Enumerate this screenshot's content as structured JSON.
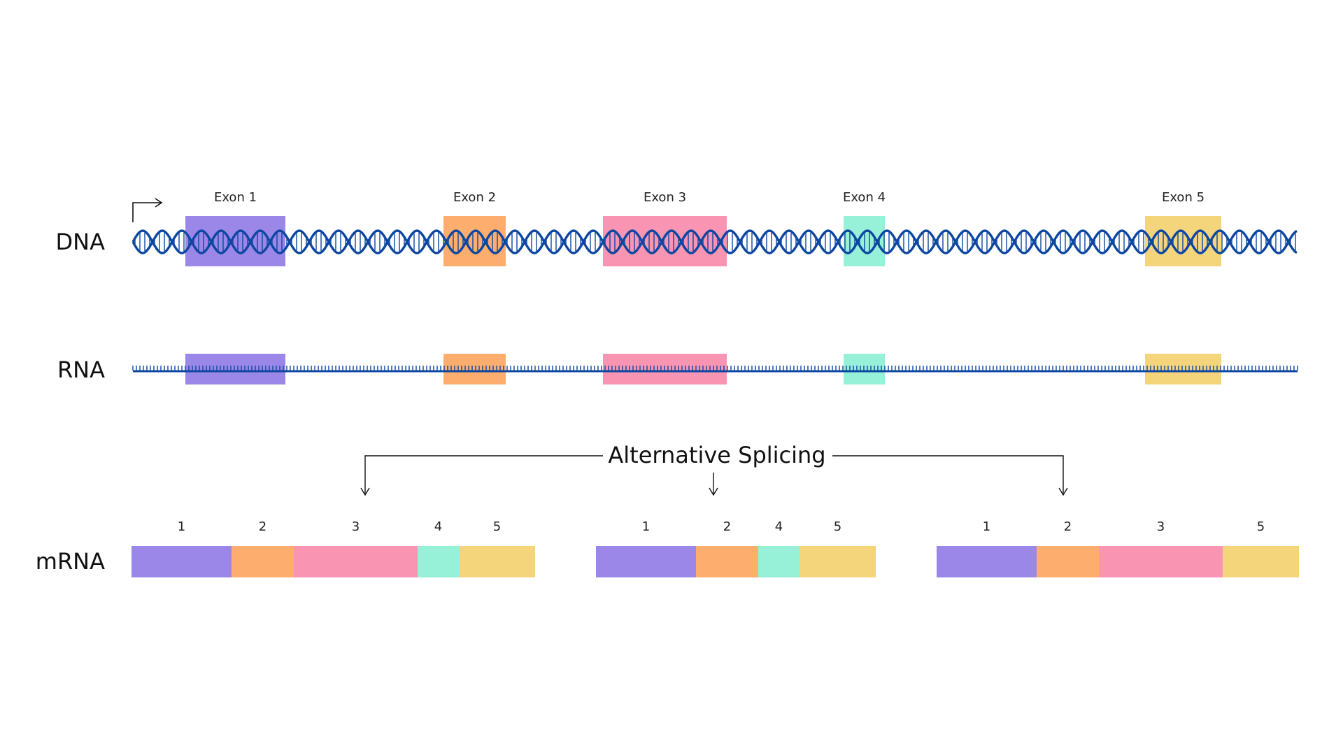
{
  "rows": {
    "dna": "DNA",
    "rna": "RNA",
    "mrna": "mRNA"
  },
  "splicing_label": "Alternative Splicing",
  "colors": {
    "strand": "#0d47a1",
    "arrow": "#111111"
  },
  "exons": [
    {
      "label": "Exon 1",
      "color": "#9b87e8"
    },
    {
      "label": "Exon 2",
      "color": "#fdae6e"
    },
    {
      "label": "Exon 3",
      "color": "#f994b2"
    },
    {
      "label": "Exon 4",
      "color": "#97f0d8"
    },
    {
      "label": "Exon 5",
      "color": "#f5d57c"
    }
  ],
  "isoforms": [
    {
      "segments": [
        {
          "label": "1",
          "exon": 0
        },
        {
          "label": "2",
          "exon": 1
        },
        {
          "label": "3",
          "exon": 2
        },
        {
          "label": "4",
          "exon": 3
        },
        {
          "label": "5",
          "exon": 4
        }
      ]
    },
    {
      "segments": [
        {
          "label": "1",
          "exon": 0
        },
        {
          "label": "2",
          "exon": 1
        },
        {
          "label": "4",
          "exon": 3
        },
        {
          "label": "5",
          "exon": 4
        }
      ]
    },
    {
      "segments": [
        {
          "label": "1",
          "exon": 0
        },
        {
          "label": "2",
          "exon": 1
        },
        {
          "label": "3",
          "exon": 2
        },
        {
          "label": "5",
          "exon": 4
        }
      ]
    }
  ]
}
